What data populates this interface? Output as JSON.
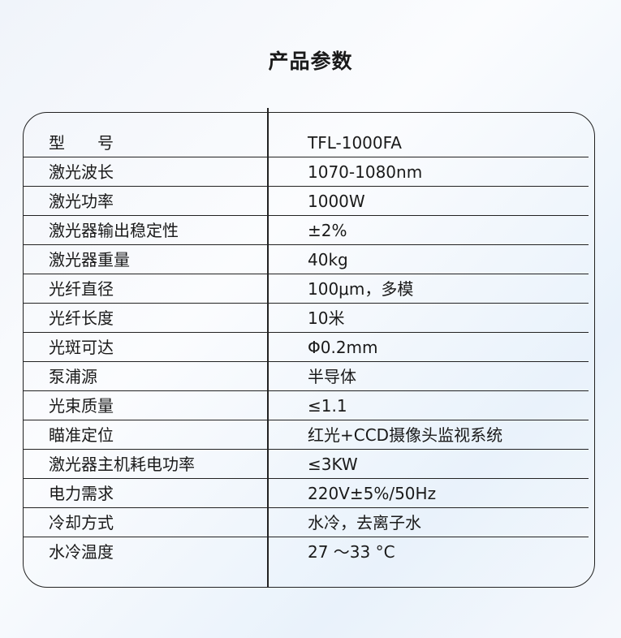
{
  "title": "产品参数",
  "rows": [
    {
      "label": "型　　号",
      "value": "TFL-1000FA"
    },
    {
      "label": "激光波长",
      "value": "1070-1080nm"
    },
    {
      "label": "激光功率",
      "value": "1000W"
    },
    {
      "label": "激光器输出稳定性",
      "value": "±2%"
    },
    {
      "label": "激光器重量",
      "value": "40kg"
    },
    {
      "label": "光纤直径",
      "value": "100μm，多模"
    },
    {
      "label": "光纤长度",
      "value": "10米"
    },
    {
      "label": "光斑可达",
      "value": "Φ0.2mm"
    },
    {
      "label": "泵浦源",
      "value": "半导体"
    },
    {
      "label": "光束质量",
      "value": "≤1.1"
    },
    {
      "label": "瞄准定位",
      "value": "红光+CCD摄像头监视系统"
    },
    {
      "label": "激光器主机耗电功率",
      "value": "≤3KW"
    },
    {
      "label": "电力需求",
      "value": "220V±5%/50Hz"
    },
    {
      "label": "冷却方式",
      "value": "水冷，去离子水"
    },
    {
      "label": "水冷温度",
      "value": "27 ～33 °C"
    }
  ]
}
